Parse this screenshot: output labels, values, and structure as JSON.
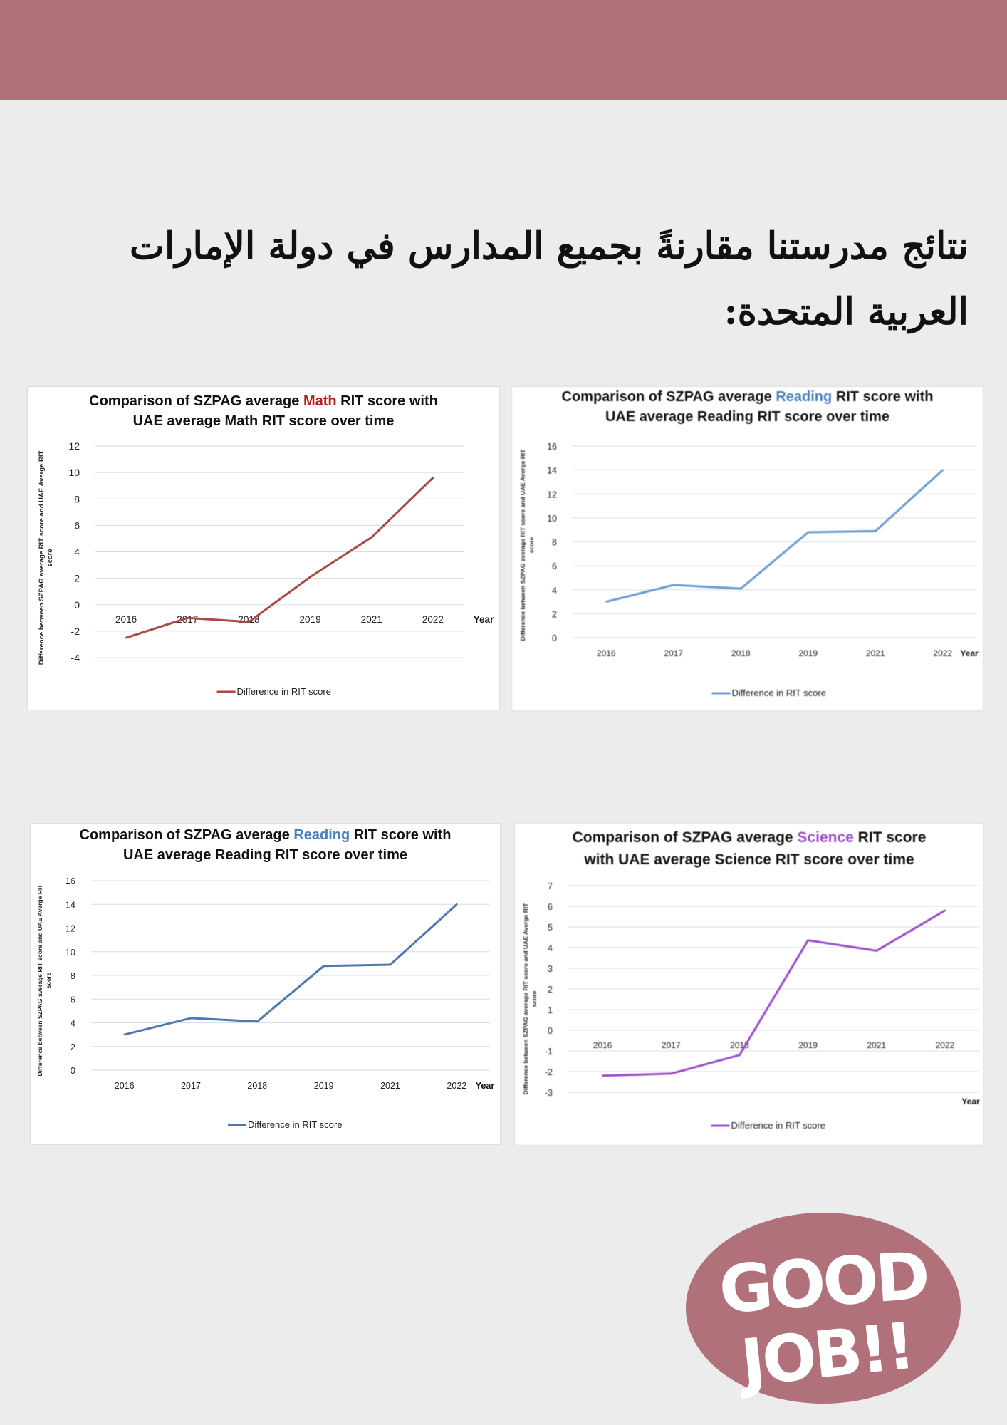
{
  "header": {
    "band_color": "#b0717b"
  },
  "heading": {
    "text": "نتائج مدرستنا مقارنةً بجميع المدارس في دولة الإمارات العربية المتحدة:"
  },
  "chart_data": [
    {
      "type": "line",
      "title": {
        "line1_prefix": "Comparison of SZPAG average ",
        "subject": "Math",
        "line1_suffix": " RIT score with",
        "line2": "UAE average Math RIT score over time"
      },
      "subject_color": "#b0201e",
      "line_color": "#a94a45",
      "categories": [
        "2016",
        "2017",
        "2018",
        "2019",
        "2021",
        "2022"
      ],
      "xlabel": "Year",
      "ylabel": "Difference between SZPAG average RIT score and UAE Averge RIT score",
      "ylim": [
        -4,
        12
      ],
      "yticks": [
        12,
        10,
        8,
        6,
        4,
        2,
        0,
        -2,
        -4
      ],
      "series": [
        {
          "name": "Difference in RIT score",
          "values": [
            -2.5,
            -1.0,
            -1.3,
            2.1,
            5.1,
            9.6
          ]
        }
      ],
      "legend": "bottom",
      "grid": true
    },
    {
      "type": "line",
      "title": {
        "line1_prefix": "Comparison of SZPAG average ",
        "subject": "Reading",
        "line1_suffix": " RIT score with",
        "line2": "UAE average Reading RIT score over time"
      },
      "subject_color": "#4a7fc1",
      "line_color": "#6b9bd1",
      "categories": [
        "2016",
        "2017",
        "2018",
        "2019",
        "2021",
        "2022"
      ],
      "xlabel": "Year",
      "ylabel": "Difference between SZPAG average RIT score and UAE Averge RIT score",
      "ylim": [
        0,
        16
      ],
      "yticks": [
        16,
        14,
        12,
        10,
        8,
        6,
        4,
        2,
        0
      ],
      "series": [
        {
          "name": "Difference in RIT score",
          "values": [
            3.0,
            4.4,
            4.1,
            8.8,
            8.9,
            14.0
          ]
        }
      ],
      "legend": "bottom",
      "grid": true
    },
    {
      "type": "line",
      "title": {
        "line1_prefix": "Comparison of SZPAG average ",
        "subject": "Reading",
        "line1_suffix": " RIT score with",
        "line2": "UAE average Reading RIT score over time"
      },
      "subject_color": "#4a7fc1",
      "line_color": "#4f78ad",
      "categories": [
        "2016",
        "2017",
        "2018",
        "2019",
        "2021",
        "2022"
      ],
      "xlabel": "Year",
      "ylabel": "Difference between SZPAG average RIT score and UAE Averge RIT score",
      "ylim": [
        0,
        16
      ],
      "yticks": [
        16,
        14,
        12,
        10,
        8,
        6,
        4,
        2,
        0
      ],
      "series": [
        {
          "name": "Difference in RIT score",
          "values": [
            3.0,
            4.4,
            4.1,
            8.8,
            8.9,
            14.0
          ]
        }
      ],
      "legend": "bottom",
      "grid": true
    },
    {
      "type": "line",
      "title": {
        "line1_prefix": "Comparison of SZPAG average ",
        "subject": "Science",
        "line1_suffix": " RIT score",
        "line2": "with UAE average Science RIT score over time"
      },
      "subject_color": "#9b4fc6",
      "line_color": "#9b4fc6",
      "categories": [
        "2016",
        "2017",
        "2018",
        "2019",
        "2021",
        "2022"
      ],
      "xlabel": "Year",
      "ylabel": "Difference between SZPAG average RIT score and UAE Averge RIT score",
      "ylim": [
        -3,
        7
      ],
      "yticks": [
        7,
        6,
        5,
        4,
        3,
        2,
        1,
        0,
        -1,
        -2,
        -3
      ],
      "series": [
        {
          "name": "Difference in RIT score",
          "values": [
            -2.2,
            -2.1,
            -1.2,
            4.35,
            3.85,
            5.8
          ]
        }
      ],
      "legend": "bottom",
      "grid": true
    }
  ],
  "badge": {
    "line1": "GOOD",
    "line2": "JOB!!",
    "color": "#b0717b"
  }
}
